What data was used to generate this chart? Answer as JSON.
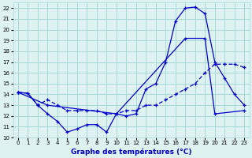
{
  "title": "Graphe des températures (°C)",
  "bg_color": "#dff2f2",
  "grid_color": "#a8d8d8",
  "line_color": "#0000cc",
  "xlim": [
    -0.5,
    23.5
  ],
  "ylim": [
    10,
    22.5
  ],
  "yticks": [
    10,
    11,
    12,
    13,
    14,
    15,
    16,
    17,
    18,
    19,
    20,
    21,
    22
  ],
  "xticks": [
    0,
    1,
    2,
    3,
    4,
    5,
    6,
    7,
    8,
    9,
    10,
    11,
    12,
    13,
    14,
    15,
    16,
    17,
    18,
    19,
    20,
    21,
    22,
    23
  ],
  "xlabel_fontsize": 6.5,
  "tick_fontsize": 5,
  "line1_x": [
    0,
    1,
    2,
    3,
    4,
    5,
    6,
    7,
    8,
    9,
    10,
    11,
    12,
    13,
    14,
    15,
    16,
    17,
    18,
    19,
    20,
    21,
    22,
    23
  ],
  "line1_y": [
    14.2,
    14.1,
    13.0,
    12.2,
    11.5,
    10.5,
    10.8,
    11.2,
    11.2,
    10.5,
    12.2,
    12.0,
    12.2,
    14.5,
    15.0,
    17.0,
    20.8,
    22.0,
    22.1,
    21.5,
    17.0,
    15.5,
    14.0,
    13.0
  ],
  "line2_x": [
    0,
    1,
    2,
    3,
    4,
    5,
    6,
    7,
    8,
    9,
    10,
    11,
    12,
    13,
    14,
    15,
    16,
    17,
    18,
    19,
    20,
    21,
    22,
    23
  ],
  "line2_y": [
    14.2,
    14.1,
    13.0,
    13.5,
    13.0,
    12.5,
    12.5,
    12.5,
    12.5,
    12.2,
    12.2,
    12.5,
    12.5,
    13.0,
    13.0,
    13.5,
    14.0,
    14.5,
    15.0,
    16.0,
    16.8,
    16.8,
    16.8,
    16.5
  ],
  "line3_x": [
    0,
    3,
    10,
    17,
    19,
    20,
    23
  ],
  "line3_y": [
    14.2,
    13.0,
    12.2,
    19.2,
    19.2,
    12.2,
    12.5
  ]
}
